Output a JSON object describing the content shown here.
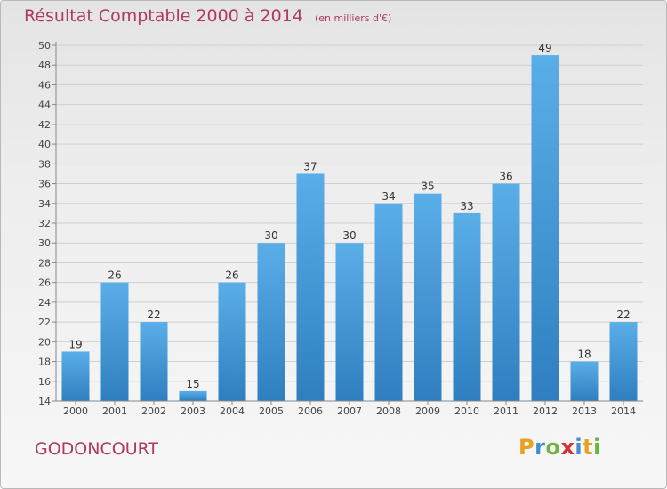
{
  "header": {
    "title": "Résultat Comptable 2000 à 2014",
    "subtitle": "(en milliers d'€)"
  },
  "footer": {
    "commune": "GODONCOURT",
    "logo_letters": [
      "P",
      "r",
      "o",
      "x",
      "i",
      "t",
      "i"
    ],
    "logo_colors": [
      "#e8a021",
      "#3f8fd0",
      "#6cb33f",
      "#d2343b",
      "#3f8fd0",
      "#e8a021",
      "#6cb33f"
    ]
  },
  "colors": {
    "title": "#b03a5e",
    "bar_light": "#5aaee8",
    "bar_dark": "#2f7fc0",
    "grid": "#cfcfcf",
    "axis_text": "#444444"
  },
  "chart_data": {
    "type": "bar",
    "categories": [
      "2000",
      "2001",
      "2002",
      "2003",
      "2004",
      "2005",
      "2006",
      "2007",
      "2008",
      "2009",
      "2010",
      "2011",
      "2012",
      "2013",
      "2014"
    ],
    "values": [
      19,
      26,
      22,
      15,
      26,
      30,
      37,
      30,
      34,
      35,
      33,
      36,
      49,
      18,
      22
    ],
    "ylim": [
      14,
      50
    ],
    "yticks": [
      14,
      16,
      18,
      20,
      22,
      24,
      26,
      28,
      30,
      32,
      34,
      36,
      38,
      40,
      42,
      44,
      46,
      48,
      50
    ],
    "grid": true,
    "data_labels": true
  }
}
